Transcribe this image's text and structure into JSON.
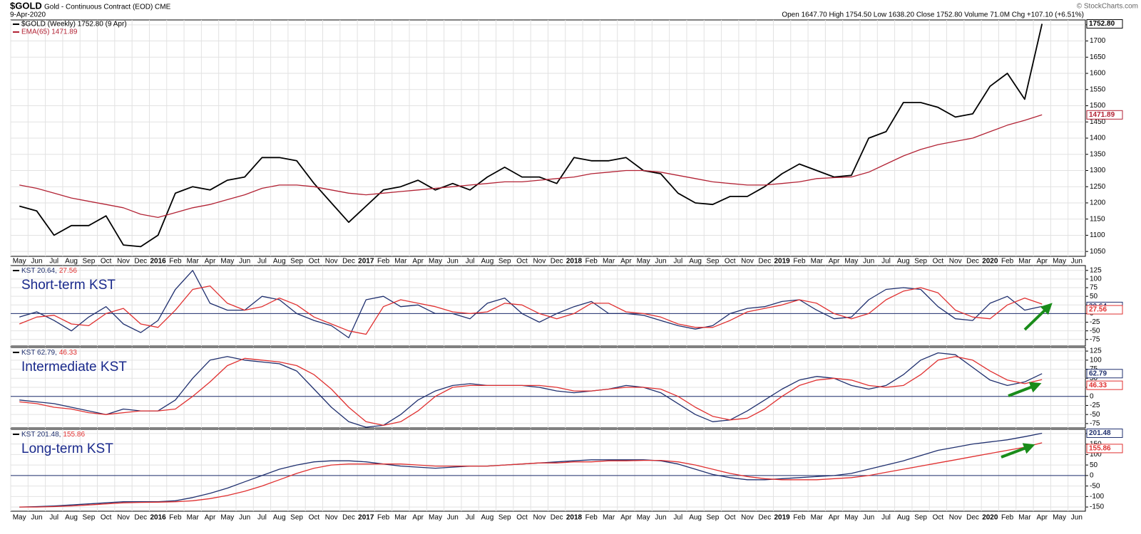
{
  "header": {
    "symbol": "$GOLD",
    "title": "Gold - Continuous Contract (EOD) CME",
    "date": "9-Apr-2020",
    "quote": "Open 1647.70 High 1754.50 Low 1638.20 Close 1752.80 Volume 71.0M Chg +107.10 (+6.51%)",
    "copyright": "© StockCharts.com"
  },
  "chart_data": [
    {
      "type": "line",
      "categories": [
        "May",
        "Jun",
        "Jul",
        "Aug",
        "Sep",
        "Oct",
        "Nov",
        "Dec",
        "2016",
        "Feb",
        "Mar",
        "Apr",
        "May",
        "Jun",
        "Jul",
        "Aug",
        "Sep",
        "Oct",
        "Nov",
        "Dec",
        "2017",
        "Feb",
        "Mar",
        "Apr",
        "May",
        "Jun",
        "Jul",
        "Aug",
        "Sep",
        "Oct",
        "Nov",
        "Dec",
        "2018",
        "Feb",
        "Mar",
        "Apr",
        "May",
        "Jun",
        "Jul",
        "Aug",
        "Sep",
        "Oct",
        "Nov",
        "Dec",
        "2019",
        "Feb",
        "Mar",
        "Apr",
        "May",
        "Jun",
        "Jul",
        "Aug",
        "Sep",
        "Oct",
        "Nov",
        "Dec",
        "2020",
        "Feb",
        "Mar",
        "Apr",
        "May",
        "Jun"
      ],
      "series": [
        {
          "name": "$GOLD (Weekly) 1752.80 (9 Apr)",
          "color": "#000000",
          "last_value_label": "1752.80",
          "values": [
            1190,
            1175,
            1100,
            1130,
            1130,
            1160,
            1070,
            1065,
            1100,
            1230,
            1250,
            1240,
            1270,
            1280,
            1340,
            1340,
            1330,
            1260,
            1200,
            1140,
            1190,
            1240,
            1250,
            1270,
            1240,
            1260,
            1240,
            1280,
            1310,
            1280,
            1280,
            1260,
            1340,
            1330,
            1330,
            1340,
            1300,
            1290,
            1230,
            1200,
            1195,
            1220,
            1220,
            1250,
            1290,
            1320,
            1300,
            1280,
            1285,
            1400,
            1420,
            1510,
            1510,
            1495,
            1465,
            1475,
            1560,
            1600,
            1520,
            1752.8,
            null,
            null
          ]
        },
        {
          "name": "EMA(65) 1471.89",
          "color": "#b22234",
          "values": [
            1255,
            1245,
            1230,
            1215,
            1205,
            1195,
            1185,
            1165,
            1155,
            1170,
            1185,
            1195,
            1210,
            1225,
            1245,
            1255,
            1255,
            1250,
            1240,
            1230,
            1225,
            1230,
            1235,
            1240,
            1245,
            1250,
            1255,
            1260,
            1265,
            1265,
            1270,
            1275,
            1280,
            1290,
            1295,
            1300,
            1300,
            1295,
            1285,
            1275,
            1265,
            1260,
            1255,
            1255,
            1260,
            1265,
            1275,
            1278,
            1280,
            1295,
            1320,
            1345,
            1365,
            1380,
            1390,
            1400,
            1420,
            1440,
            1455,
            1471.89,
            null,
            null
          ]
        }
      ],
      "ylim": [
        1035,
        1765
      ],
      "yticks": [
        1050,
        1100,
        1150,
        1200,
        1250,
        1300,
        1350,
        1400,
        1450,
        1500,
        1550,
        1600,
        1650,
        1700,
        1750
      ],
      "grid": true
    },
    {
      "type": "line",
      "title": "Short-term KST",
      "legend": [
        "KST 20.64,",
        "27.56"
      ],
      "series": [
        {
          "color": "#1f2f6e",
          "values": [
            -10,
            5,
            -20,
            -50,
            -10,
            20,
            -30,
            -55,
            -20,
            70,
            125,
            30,
            10,
            10,
            50,
            40,
            0,
            -20,
            -35,
            -70,
            40,
            50,
            20,
            25,
            0,
            0,
            -15,
            30,
            45,
            0,
            -25,
            0,
            20,
            35,
            0,
            0,
            -5,
            -20,
            -35,
            -45,
            -35,
            0,
            15,
            20,
            35,
            40,
            10,
            -15,
            -10,
            40,
            70,
            75,
            70,
            20,
            -15,
            -20,
            30,
            50,
            10,
            20.64,
            null,
            null
          ]
        },
        {
          "color": "#e03030",
          "values": [
            -30,
            -10,
            -5,
            -30,
            -35,
            0,
            15,
            -30,
            -40,
            10,
            70,
            80,
            30,
            10,
            20,
            45,
            25,
            -10,
            -30,
            -50,
            -60,
            20,
            40,
            30,
            20,
            5,
            0,
            5,
            30,
            25,
            0,
            -15,
            0,
            30,
            30,
            5,
            0,
            -10,
            -30,
            -40,
            -40,
            -20,
            5,
            15,
            25,
            40,
            30,
            0,
            -15,
            0,
            40,
            65,
            75,
            60,
            10,
            -10,
            -15,
            25,
            45,
            27.56,
            null,
            null
          ]
        }
      ],
      "ylim": [
        -94,
        139
      ],
      "yticks": [
        -75,
        -50,
        -25,
        0,
        25,
        50,
        75,
        100,
        125
      ],
      "grid": true
    },
    {
      "type": "line",
      "title": "Intermediate KST",
      "legend": [
        "KST 62.79,",
        "46.33"
      ],
      "series": [
        {
          "color": "#1f2f6e",
          "values": [
            -10,
            -15,
            -20,
            -30,
            -40,
            -50,
            -35,
            -40,
            -40,
            -10,
            50,
            100,
            110,
            100,
            95,
            90,
            70,
            20,
            -30,
            -70,
            -85,
            -80,
            -50,
            -10,
            15,
            30,
            35,
            30,
            30,
            30,
            25,
            15,
            10,
            15,
            20,
            30,
            25,
            10,
            -20,
            -50,
            -70,
            -65,
            -40,
            -10,
            20,
            45,
            55,
            50,
            30,
            20,
            30,
            60,
            100,
            120,
            115,
            80,
            45,
            30,
            40,
            62.79,
            null,
            null
          ]
        },
        {
          "color": "#e03030",
          "values": [
            -15,
            -20,
            -30,
            -35,
            -45,
            -50,
            -45,
            -40,
            -40,
            -35,
            0,
            40,
            85,
            105,
            100,
            95,
            85,
            60,
            20,
            -30,
            -70,
            -80,
            -70,
            -40,
            0,
            25,
            30,
            30,
            30,
            30,
            30,
            25,
            15,
            15,
            20,
            25,
            25,
            20,
            0,
            -30,
            -55,
            -65,
            -60,
            -35,
            0,
            30,
            45,
            50,
            45,
            30,
            25,
            30,
            60,
            100,
            110,
            100,
            70,
            45,
            35,
            46.33,
            null,
            null
          ]
        }
      ],
      "ylim": [
        -87,
        135
      ],
      "yticks": [
        -75,
        -50,
        -25,
        0,
        25,
        50,
        75,
        100,
        125
      ],
      "grid": true
    },
    {
      "type": "line",
      "title": "Long-term KST",
      "legend": [
        "KST 201.48,",
        "155.86"
      ],
      "categories": [
        "May",
        "Jun",
        "Jul",
        "Aug",
        "Sep",
        "Oct",
        "Nov",
        "Dec",
        "2016",
        "Feb",
        "Mar",
        "Apr",
        "May",
        "Jun",
        "Jul",
        "Aug",
        "Sep",
        "Oct",
        "Nov",
        "Dec",
        "2017",
        "Feb",
        "Mar",
        "Apr",
        "May",
        "Jun",
        "Jul",
        "Aug",
        "Sep",
        "Oct",
        "Nov",
        "Dec",
        "2018",
        "Feb",
        "Mar",
        "Apr",
        "May",
        "Jun",
        "Jul",
        "Aug",
        "Sep",
        "Oct",
        "Nov",
        "Dec",
        "2019",
        "Feb",
        "Mar",
        "Apr",
        "May",
        "Jun",
        "Jul",
        "Aug",
        "Sep",
        "Oct",
        "Nov",
        "Dec",
        "2020",
        "Feb",
        "Mar",
        "Apr",
        "May",
        "Jun"
      ],
      "series": [
        {
          "color": "#1f2f6e",
          "values": [
            -150,
            -148,
            -145,
            -140,
            -135,
            -130,
            -125,
            -125,
            -125,
            -120,
            -105,
            -85,
            -60,
            -30,
            0,
            30,
            50,
            65,
            70,
            70,
            65,
            55,
            45,
            40,
            35,
            40,
            45,
            45,
            50,
            55,
            60,
            65,
            70,
            75,
            75,
            75,
            75,
            70,
            55,
            30,
            5,
            -10,
            -20,
            -20,
            -15,
            -10,
            -5,
            0,
            10,
            30,
            50,
            70,
            95,
            120,
            135,
            150,
            160,
            170,
            185,
            201.48,
            null,
            null
          ]
        },
        {
          "color": "#e03030",
          "values": [
            -150,
            -150,
            -148,
            -145,
            -140,
            -135,
            -130,
            -128,
            -127,
            -125,
            -120,
            -110,
            -95,
            -75,
            -50,
            -20,
            10,
            35,
            50,
            55,
            55,
            55,
            55,
            50,
            45,
            45,
            45,
            45,
            50,
            55,
            60,
            60,
            65,
            65,
            70,
            70,
            72,
            72,
            65,
            50,
            30,
            10,
            -5,
            -15,
            -20,
            -20,
            -20,
            -15,
            -10,
            0,
            15,
            30,
            45,
            60,
            75,
            90,
            105,
            120,
            135,
            155.86,
            null,
            null
          ]
        }
      ],
      "ylim": [
        -170,
        220
      ],
      "yticks": [
        -150,
        -100,
        -50,
        0,
        50,
        100,
        150,
        200
      ],
      "grid": true
    }
  ]
}
